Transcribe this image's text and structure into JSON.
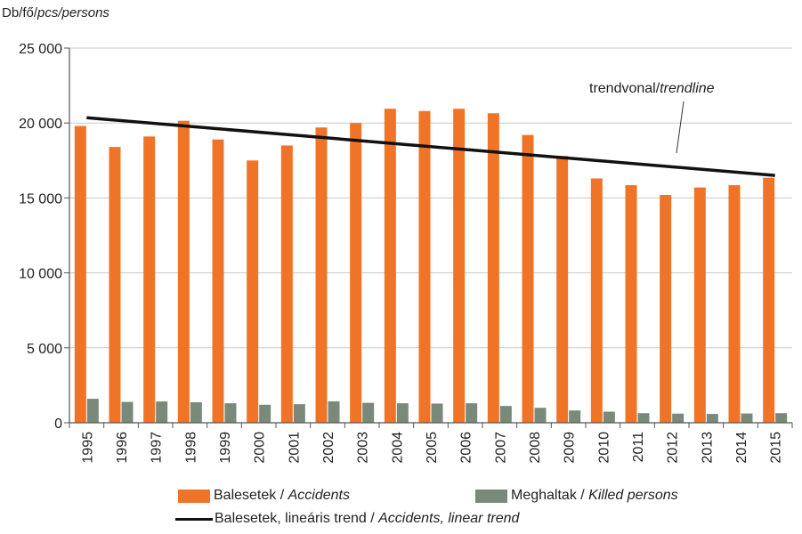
{
  "chart_data": {
    "type": "bar",
    "ylabel": {
      "plain": "Db/fő/",
      "italic": "pcs/persons"
    },
    "ylim": [
      0,
      25000
    ],
    "yticks": [
      0,
      5000,
      10000,
      15000,
      20000,
      25000
    ],
    "ytick_labels": [
      "0",
      "5 000",
      "10 000",
      "15 000",
      "20 000",
      "25 000"
    ],
    "grid": "horizontal",
    "categories": [
      "1995",
      "1996",
      "1997",
      "1998",
      "1999",
      "2000",
      "2001",
      "2002",
      "2003",
      "2004",
      "2005",
      "2006",
      "2007",
      "2008",
      "2009",
      "2010",
      "2011",
      "2012",
      "2013",
      "2014",
      "2015"
    ],
    "series": [
      {
        "key": "accidents",
        "color": "#f07427",
        "values": [
          19800,
          18400,
          19100,
          20150,
          18900,
          17500,
          18500,
          19700,
          20000,
          20950,
          20800,
          20950,
          20650,
          19200,
          17800,
          16300,
          15850,
          15200,
          15700,
          15850,
          16350
        ]
      },
      {
        "key": "killed",
        "color": "#7a8a7a",
        "values": [
          1600,
          1390,
          1420,
          1370,
          1300,
          1200,
          1240,
          1430,
          1330,
          1300,
          1280,
          1300,
          1120,
          1000,
          820,
          740,
          640,
          610,
          590,
          620,
          640
        ]
      }
    ],
    "trend": {
      "key": "trend",
      "color": "#111111",
      "start": 20350,
      "end": 16500
    },
    "annotation": {
      "plain": "trendvonal/",
      "italic": "trendline"
    },
    "legend": {
      "placement": "bottom",
      "items": [
        {
          "plain": "Balesetek / ",
          "italic": "Accidents"
        },
        {
          "plain": "Meghaltak / ",
          "italic": "Killed persons"
        },
        {
          "plain": "Balesetek, lineáris trend / ",
          "italic": "Accidents, linear trend"
        }
      ]
    }
  }
}
